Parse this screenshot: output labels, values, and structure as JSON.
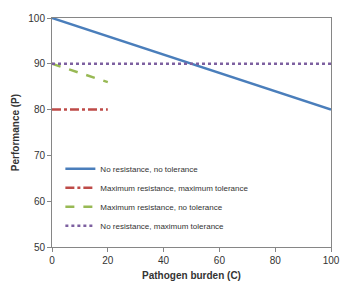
{
  "chart_data": {
    "type": "line",
    "x_label": "Pathogen burden (C)",
    "y_label": "Performance (P)",
    "x": [
      0,
      20,
      100
    ],
    "series": [
      {
        "name": "No resistance, no tolerance",
        "color": "#4a7ebb",
        "line_style": "solid",
        "values": [
          100,
          96,
          80
        ]
      },
      {
        "name": "Maximum resistance, maximum tolerance",
        "color": "#be4b48",
        "line_style": "dashdot",
        "values": [
          80,
          80,
          null
        ]
      },
      {
        "name": "Maximum resistance, no tolerance",
        "color": "#98b954",
        "line_style": "dash",
        "values": [
          90,
          86,
          null
        ]
      },
      {
        "name": "No resistance, maximum tolerance",
        "color": "#7d60a0",
        "line_style": "dot",
        "values": [
          90,
          90,
          90
        ]
      }
    ],
    "xlim": [
      0,
      100
    ],
    "xticks": [
      0,
      20,
      40,
      60,
      80,
      100
    ],
    "ylim": [
      50,
      100
    ],
    "yticks": [
      50,
      60,
      70,
      80,
      90,
      100
    ],
    "grid": false,
    "legend": "lower left"
  }
}
